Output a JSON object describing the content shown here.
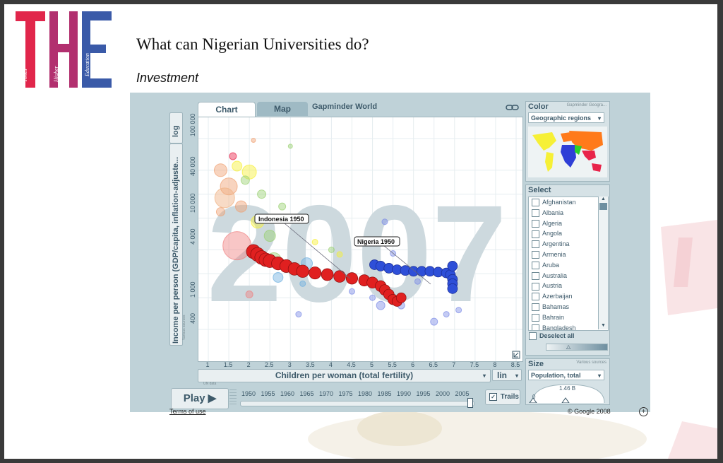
{
  "slide": {
    "title": "What can Nigerian Universities do?",
    "subtitle": "Investment"
  },
  "logo": {
    "letters": "THE",
    "words": [
      "Times",
      "Higher",
      "Education"
    ],
    "colors": {
      "T": "#e1264b",
      "H": "#b2306f",
      "E": "#3a5aa8"
    }
  },
  "app": {
    "tabs": [
      {
        "label": "Chart",
        "active": true
      },
      {
        "label": "Map",
        "active": false
      }
    ],
    "title": "Gapminder World",
    "link_icon": "link-icon",
    "year_watermark": "2007",
    "y_axis": {
      "scale": "log",
      "label": "Income per person (GDP/capita, inflation-adjuste...",
      "source": "Various sources",
      "ticks": [
        "400",
        "1 000",
        "4 000",
        "10 000",
        "40 000",
        "100 000"
      ]
    },
    "x_axis": {
      "scale": "lin",
      "label": "Children per woman (total fertility)",
      "source": "UN data",
      "ticks": [
        "1",
        "1.5",
        "2",
        "2.5",
        "3",
        "3.5",
        "4",
        "4.5",
        "5",
        "5.5",
        "6",
        "6.5",
        "7",
        "7.5",
        "8",
        "8.5"
      ]
    },
    "annotations": [
      {
        "text": "Indonesia 1950"
      },
      {
        "text": "Nigeria 1950"
      }
    ],
    "play": {
      "label": "Play"
    },
    "timeline": {
      "years": [
        "1950",
        "1955",
        "1960",
        "1965",
        "1970",
        "1975",
        "1980",
        "1985",
        "1990",
        "1995",
        "2000",
        "2005"
      ],
      "current": 2007
    },
    "trails": {
      "label": "Trails",
      "checked": true
    },
    "color_panel": {
      "title": "Color",
      "source": "Gapminder Geogra...",
      "selected": "Geographic regions"
    },
    "select_panel": {
      "title": "Select",
      "countries": [
        "Afghanistan",
        "Albania",
        "Algeria",
        "Angola",
        "Argentina",
        "Armenia",
        "Aruba",
        "Australia",
        "Austria",
        "Azerbaijan",
        "Bahamas",
        "Bahrain",
        "Bangladesh"
      ],
      "deselect_label": "Deselect all"
    },
    "size_panel": {
      "title": "Size",
      "source": "Various sources",
      "selected": "Population, total",
      "max_label": "1.46 B",
      "min_label": "0"
    },
    "footer": {
      "terms": "Terms of use",
      "copyright": "© Google 2008"
    }
  },
  "chart_data": {
    "type": "scatter",
    "title": "",
    "xlabel": "Children per woman (total fertility)",
    "ylabel": "Income per person (GDP/capita, inflation-adjuste...",
    "xlim": [
      0.7,
      8.8
    ],
    "ylim": [
      200,
      200000
    ],
    "y_scale": "log",
    "series": [
      {
        "name": "Indonesia 1950",
        "color": "#e02020",
        "points": [
          [
            2.1,
            3800
          ],
          [
            2.2,
            3500
          ],
          [
            2.3,
            3200
          ],
          [
            2.4,
            3000
          ],
          [
            2.5,
            2900
          ],
          [
            2.7,
            2700
          ],
          [
            2.9,
            2500
          ],
          [
            3.1,
            2300
          ],
          [
            3.3,
            2150
          ],
          [
            3.6,
            2050
          ],
          [
            3.9,
            1950
          ],
          [
            4.2,
            1850
          ],
          [
            4.5,
            1750
          ],
          [
            4.8,
            1650
          ],
          [
            5.0,
            1550
          ],
          [
            5.2,
            1400
          ],
          [
            5.3,
            1250
          ],
          [
            5.4,
            1100
          ],
          [
            5.5,
            950
          ],
          [
            5.6,
            900
          ],
          [
            5.7,
            1000
          ]
        ]
      },
      {
        "name": "Nigeria 1950",
        "color": "#2e4fd8",
        "points": [
          [
            5.05,
            2600
          ],
          [
            5.2,
            2500
          ],
          [
            5.4,
            2350
          ],
          [
            5.6,
            2250
          ],
          [
            5.8,
            2200
          ],
          [
            6.0,
            2150
          ],
          [
            6.2,
            2150
          ],
          [
            6.4,
            2150
          ],
          [
            6.6,
            2100
          ],
          [
            6.8,
            2050
          ],
          [
            6.9,
            1950
          ],
          [
            6.95,
            1700
          ],
          [
            6.95,
            1500
          ],
          [
            6.95,
            1300
          ],
          [
            6.95,
            2500
          ]
        ]
      }
    ]
  }
}
